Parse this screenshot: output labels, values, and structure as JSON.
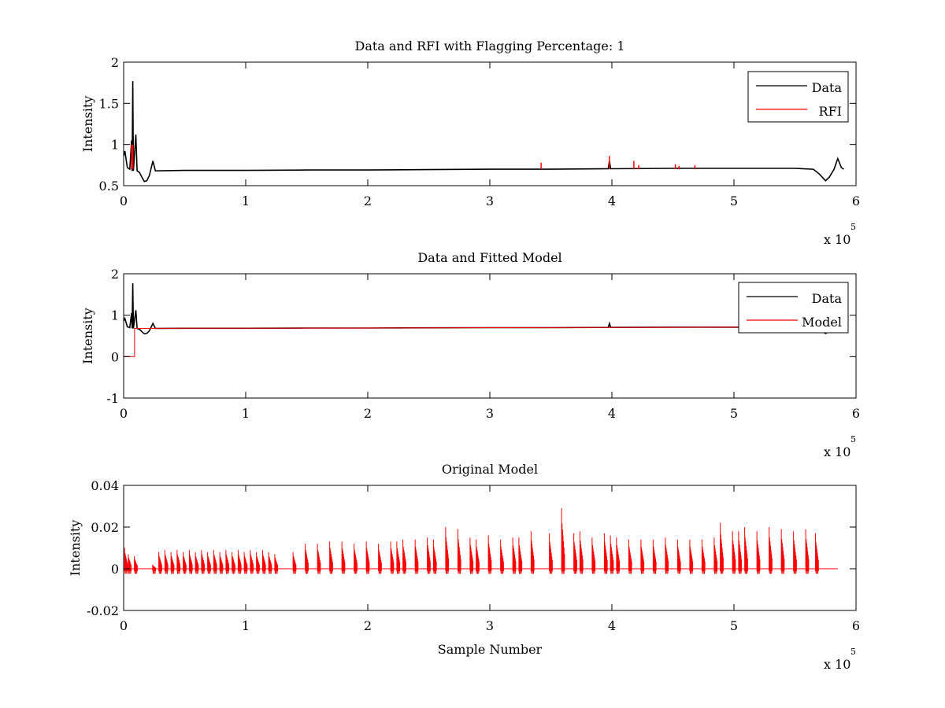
{
  "chart_data": [
    {
      "type": "line",
      "title": "Data and RFI with Flagging Percentage: 1",
      "xlabel": "",
      "ylabel": "Intensity",
      "xlim": [
        0,
        6
      ],
      "ylim": [
        0.5,
        2
      ],
      "x_ticks": [
        "0",
        "1",
        "2",
        "3",
        "4",
        "5",
        "6"
      ],
      "y_ticks": [
        "0.5",
        "1",
        "1.5",
        "2"
      ],
      "y_tick_values": [
        0.5,
        1,
        1.5,
        2
      ],
      "x_exponent": {
        "base": "x 10",
        "power": "5"
      },
      "legend": {
        "position": "top-right",
        "entries": [
          "Data",
          "RFI"
        ]
      },
      "grid": false,
      "series": [
        {
          "name": "Data",
          "color": "#000000",
          "points": [
            [
              0,
              0.86
            ],
            [
              0.01,
              0.92
            ],
            [
              0.03,
              0.72
            ],
            [
              0.05,
              0.7
            ],
            [
              0.065,
              1.05
            ],
            [
              0.07,
              0.68
            ],
            [
              0.075,
              1.77
            ],
            [
              0.08,
              0.68
            ],
            [
              0.1,
              1.12
            ],
            [
              0.11,
              0.68
            ],
            [
              0.13,
              0.66
            ],
            [
              0.15,
              0.6
            ],
            [
              0.17,
              0.55
            ],
            [
              0.19,
              0.56
            ],
            [
              0.21,
              0.62
            ],
            [
              0.22,
              0.68
            ],
            [
              0.24,
              0.8
            ],
            [
              0.26,
              0.68
            ],
            [
              0.5,
              0.685
            ],
            [
              1,
              0.685
            ],
            [
              1.5,
              0.69
            ],
            [
              2,
              0.69
            ],
            [
              2.5,
              0.695
            ],
            [
              3,
              0.7
            ],
            [
              3.5,
              0.7
            ],
            [
              3.97,
              0.705
            ],
            [
              3.98,
              0.8
            ],
            [
              3.99,
              0.705
            ],
            [
              4.5,
              0.71
            ],
            [
              5,
              0.71
            ],
            [
              5.5,
              0.71
            ],
            [
              5.65,
              0.7
            ],
            [
              5.7,
              0.64
            ],
            [
              5.75,
              0.56
            ],
            [
              5.78,
              0.6
            ],
            [
              5.82,
              0.7
            ],
            [
              5.85,
              0.83
            ],
            [
              5.88,
              0.72
            ],
            [
              5.9,
              0.7
            ]
          ]
        },
        {
          "name": "RFI",
          "color": "#ff0000",
          "points": [
            [
              0.065,
              1.0
            ],
            [
              0.075,
              1.0
            ],
            [
              3.42,
              0.78
            ],
            [
              3.98,
              0.86
            ],
            [
              4.18,
              0.8
            ],
            [
              4.22,
              0.75
            ],
            [
              4.52,
              0.76
            ],
            [
              4.55,
              0.74
            ],
            [
              4.68,
              0.75
            ]
          ]
        }
      ]
    },
    {
      "type": "line",
      "title": "Data and Fitted Model",
      "xlabel": "",
      "ylabel": "Intensity",
      "xlim": [
        0,
        6
      ],
      "ylim": [
        -1,
        2
      ],
      "x_ticks": [
        "0",
        "1",
        "2",
        "3",
        "4",
        "5",
        "6"
      ],
      "y_ticks": [
        "-1",
        "0",
        "1",
        "2"
      ],
      "y_tick_values": [
        -1,
        0,
        1,
        2
      ],
      "x_exponent": {
        "base": "x 10",
        "power": "5"
      },
      "legend": {
        "position": "top-right",
        "entries": [
          "Data",
          "Model"
        ]
      },
      "grid": false,
      "series": [
        {
          "name": "Data",
          "color": "#000000",
          "points": [
            [
              0,
              0.86
            ],
            [
              0.01,
              0.92
            ],
            [
              0.03,
              0.72
            ],
            [
              0.05,
              0.7
            ],
            [
              0.065,
              1.05
            ],
            [
              0.07,
              0.68
            ],
            [
              0.075,
              1.77
            ],
            [
              0.08,
              0.68
            ],
            [
              0.1,
              1.12
            ],
            [
              0.11,
              0.68
            ],
            [
              0.13,
              0.66
            ],
            [
              0.15,
              0.6
            ],
            [
              0.17,
              0.55
            ],
            [
              0.19,
              0.56
            ],
            [
              0.21,
              0.62
            ],
            [
              0.22,
              0.68
            ],
            [
              0.24,
              0.8
            ],
            [
              0.26,
              0.68
            ],
            [
              0.5,
              0.685
            ],
            [
              1,
              0.685
            ],
            [
              1.5,
              0.69
            ],
            [
              2,
              0.69
            ],
            [
              2.5,
              0.695
            ],
            [
              3,
              0.7
            ],
            [
              3.5,
              0.7
            ],
            [
              3.97,
              0.705
            ],
            [
              3.98,
              0.8
            ],
            [
              3.99,
              0.705
            ],
            [
              4.5,
              0.71
            ],
            [
              5,
              0.71
            ],
            [
              5.5,
              0.71
            ],
            [
              5.65,
              0.7
            ],
            [
              5.7,
              0.64
            ],
            [
              5.75,
              0.56
            ],
            [
              5.78,
              0.6
            ],
            [
              5.82,
              0.7
            ],
            [
              5.85,
              0.83
            ],
            [
              5.88,
              0.72
            ],
            [
              5.9,
              0.7
            ]
          ]
        },
        {
          "name": "Model",
          "color": "#ff0000",
          "points": [
            [
              0,
              0
            ],
            [
              0.09,
              0
            ],
            [
              0.09,
              0.68
            ],
            [
              0.5,
              0.685
            ],
            [
              1,
              0.685
            ],
            [
              2,
              0.69
            ],
            [
              3,
              0.7
            ],
            [
              4,
              0.705
            ],
            [
              5,
              0.71
            ],
            [
              5.9,
              0.71
            ]
          ]
        }
      ]
    },
    {
      "type": "line",
      "title": "Original Model",
      "xlabel": "Sample Number",
      "ylabel": "Intensity",
      "xlim": [
        0,
        6
      ],
      "ylim": [
        -0.02,
        0.04
      ],
      "x_ticks": [
        "0",
        "1",
        "2",
        "3",
        "4",
        "5",
        "6"
      ],
      "y_ticks": [
        "-0.02",
        "0",
        "0.02",
        "0.04"
      ],
      "y_tick_values": [
        -0.02,
        0,
        0.02,
        0.04
      ],
      "x_exponent": {
        "base": "x 10",
        "power": "5"
      },
      "legend": null,
      "grid": false,
      "series": [
        {
          "color": "#ff0000",
          "spike_peaks": [
            [
              0.02,
              0.01
            ],
            [
              0.05,
              0.007
            ],
            [
              0.1,
              0.006
            ],
            [
              0.25,
              0.002
            ],
            [
              0.3,
              0.008
            ],
            [
              0.35,
              0.009
            ],
            [
              0.4,
              0.008
            ],
            [
              0.45,
              0.009
            ],
            [
              0.5,
              0.008
            ],
            [
              0.55,
              0.009
            ],
            [
              0.6,
              0.008
            ],
            [
              0.65,
              0.009
            ],
            [
              0.7,
              0.008
            ],
            [
              0.75,
              0.009
            ],
            [
              0.8,
              0.008
            ],
            [
              0.85,
              0.009
            ],
            [
              0.9,
              0.008
            ],
            [
              0.95,
              0.009
            ],
            [
              1.0,
              0.008
            ],
            [
              1.05,
              0.009
            ],
            [
              1.1,
              0.008
            ],
            [
              1.15,
              0.009
            ],
            [
              1.2,
              0.008
            ],
            [
              1.25,
              0.007
            ],
            [
              1.4,
              0.008
            ],
            [
              1.5,
              0.012
            ],
            [
              1.6,
              0.012
            ],
            [
              1.7,
              0.013
            ],
            [
              1.8,
              0.013
            ],
            [
              1.9,
              0.012
            ],
            [
              2.0,
              0.013
            ],
            [
              2.1,
              0.012
            ],
            [
              2.2,
              0.013
            ],
            [
              2.25,
              0.013
            ],
            [
              2.3,
              0.014
            ],
            [
              2.4,
              0.014
            ],
            [
              2.5,
              0.015
            ],
            [
              2.55,
              0.014
            ],
            [
              2.65,
              0.02
            ],
            [
              2.75,
              0.019
            ],
            [
              2.85,
              0.015
            ],
            [
              2.9,
              0.014
            ],
            [
              3.0,
              0.016
            ],
            [
              3.1,
              0.014
            ],
            [
              3.2,
              0.015
            ],
            [
              3.25,
              0.015
            ],
            [
              3.35,
              0.018
            ],
            [
              3.5,
              0.017
            ],
            [
              3.6,
              0.029
            ],
            [
              3.7,
              0.017
            ],
            [
              3.75,
              0.018
            ],
            [
              3.85,
              0.015
            ],
            [
              3.95,
              0.017
            ],
            [
              4.0,
              0.016
            ],
            [
              4.05,
              0.015
            ],
            [
              4.15,
              0.014
            ],
            [
              4.25,
              0.014
            ],
            [
              4.35,
              0.014
            ],
            [
              4.45,
              0.015
            ],
            [
              4.55,
              0.014
            ],
            [
              4.65,
              0.014
            ],
            [
              4.75,
              0.014
            ],
            [
              4.85,
              0.015
            ],
            [
              4.9,
              0.022
            ],
            [
              5.0,
              0.018
            ],
            [
              5.05,
              0.018
            ],
            [
              5.1,
              0.02
            ],
            [
              5.2,
              0.018
            ],
            [
              5.3,
              0.02
            ],
            [
              5.4,
              0.019
            ],
            [
              5.5,
              0.018
            ],
            [
              5.6,
              0.019
            ],
            [
              5.68,
              0.017
            ]
          ],
          "trough_depth": -0.004
        }
      ]
    }
  ]
}
